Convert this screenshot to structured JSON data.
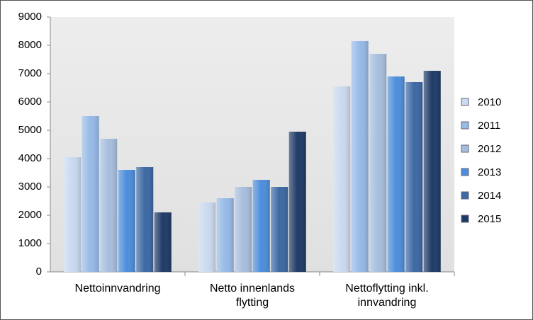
{
  "chart_data": {
    "type": "bar",
    "categories": [
      "Nettoinnvandring",
      "Netto innenlands flytting",
      "Nettoflytting inkl. innvandring"
    ],
    "series": [
      {
        "name": "2010",
        "color": "#c9d9ef",
        "values": [
          4050,
          2450,
          6550
        ]
      },
      {
        "name": "2011",
        "color": "#96b9e6",
        "values": [
          5500,
          2600,
          8150
        ]
      },
      {
        "name": "2012",
        "color": "#a6bedd",
        "values": [
          4700,
          3000,
          7700
        ]
      },
      {
        "name": "2013",
        "color": "#4d8ddb",
        "values": [
          3600,
          3250,
          6900
        ]
      },
      {
        "name": "2014",
        "color": "#3c68a3",
        "values": [
          3700,
          3000,
          6700
        ]
      },
      {
        "name": "2015",
        "color": "#1e3a66",
        "values": [
          2100,
          4950,
          7100
        ]
      }
    ],
    "ylim": [
      0,
      9000
    ],
    "yticks": [
      0,
      1000,
      2000,
      3000,
      4000,
      5000,
      6000,
      7000,
      8000,
      9000
    ],
    "legend": "right"
  }
}
